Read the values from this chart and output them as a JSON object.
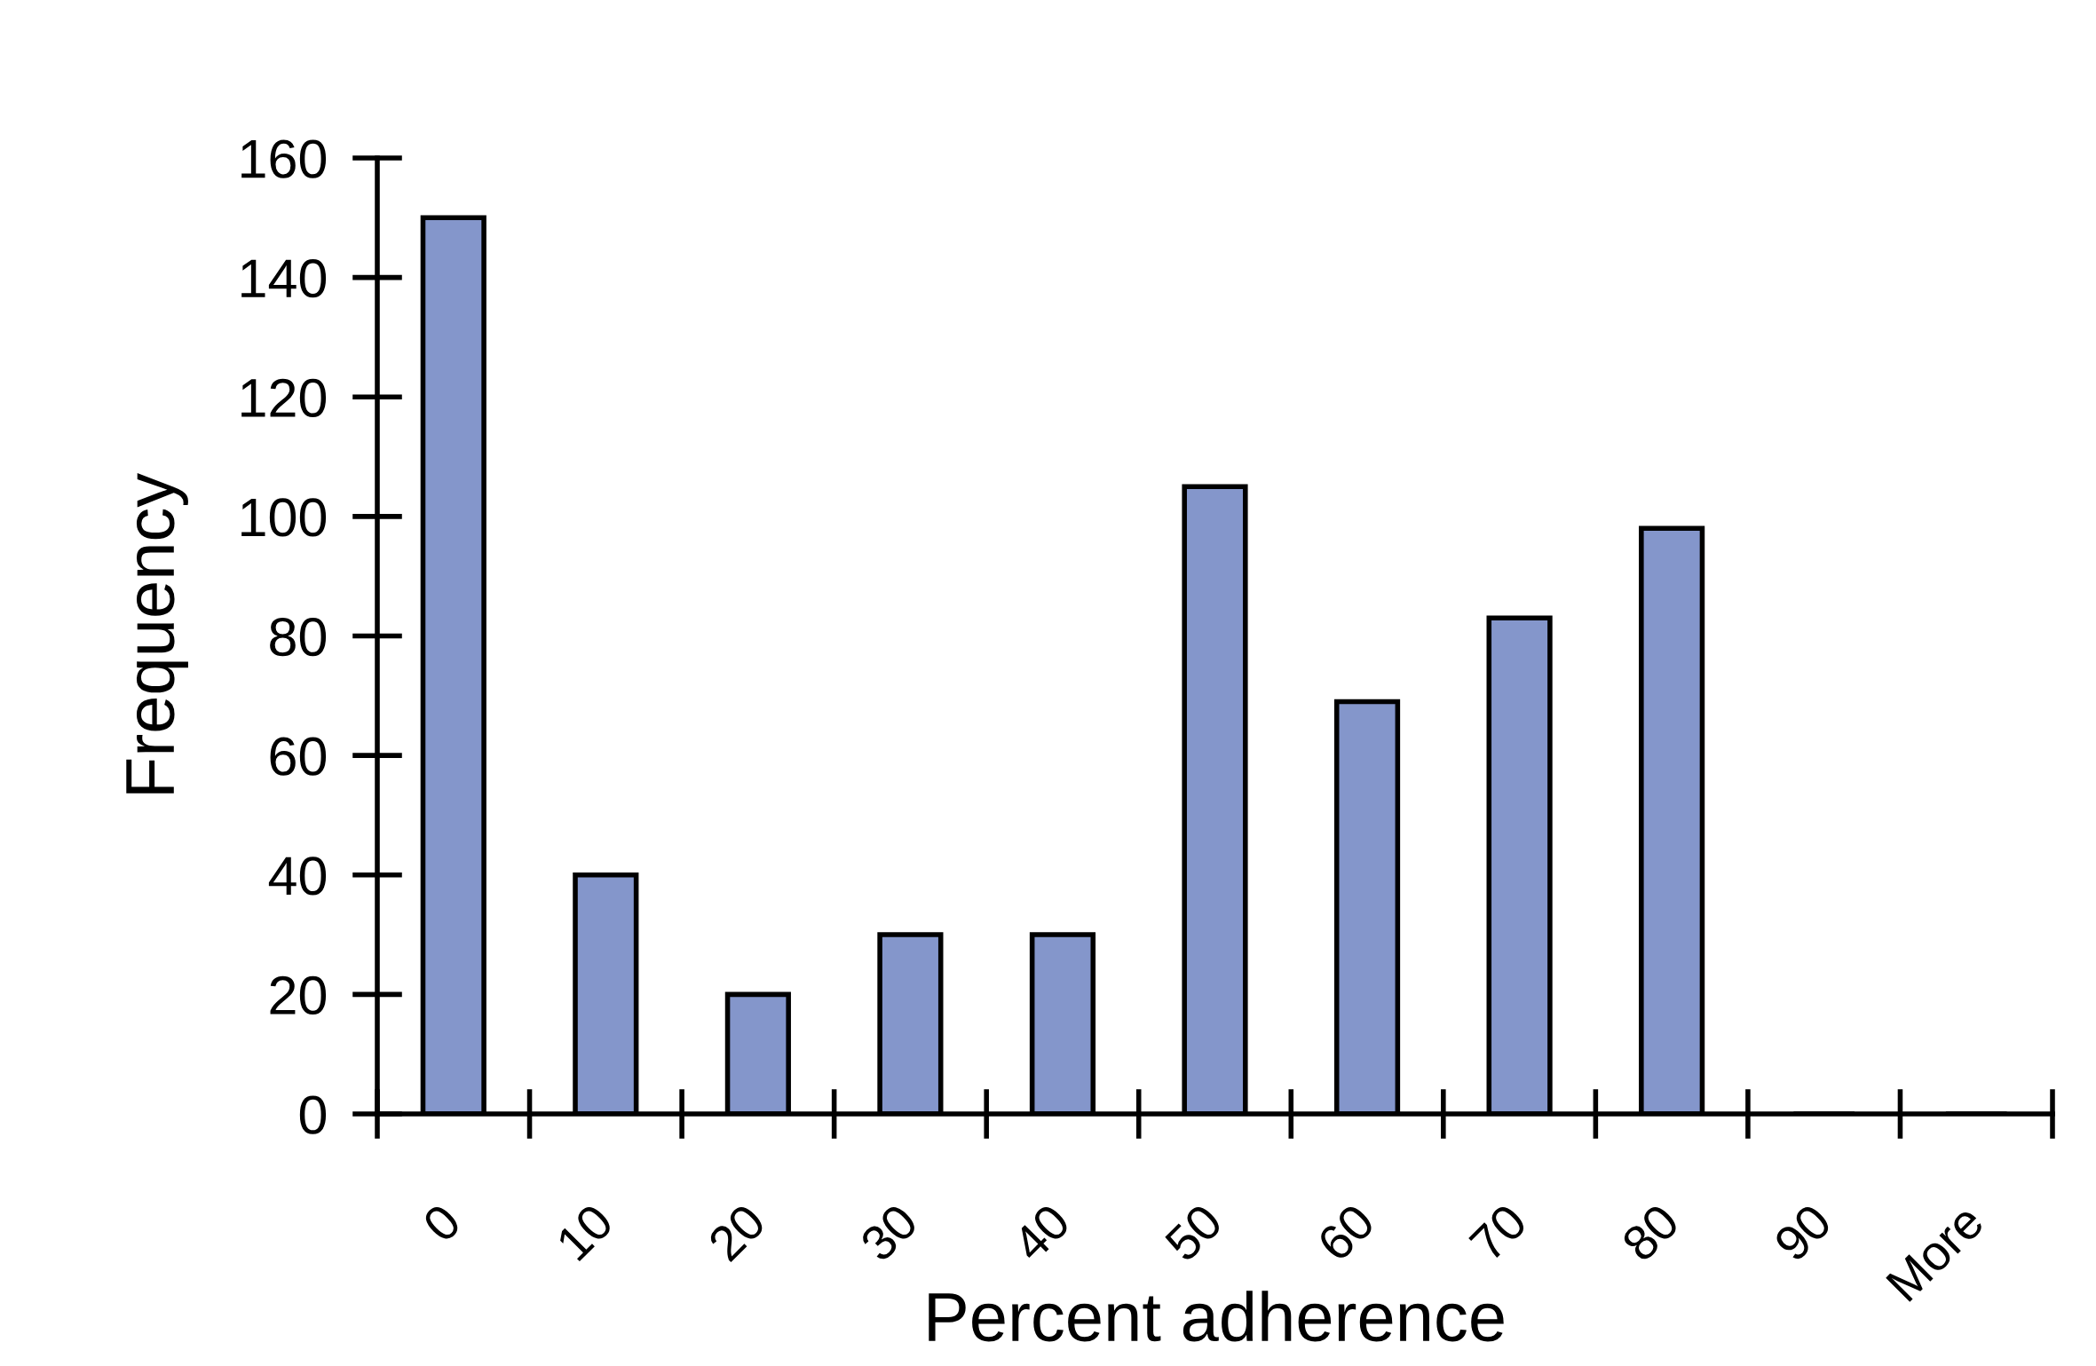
{
  "chart_data": {
    "type": "bar",
    "xlabel": "Percent adherence",
    "ylabel": "Frequency",
    "categories": [
      "0",
      "10",
      "20",
      "30",
      "40",
      "50",
      "60",
      "70",
      "80",
      "90",
      "More"
    ],
    "values": [
      150,
      40,
      20,
      30,
      30,
      105,
      69,
      83,
      98,
      0,
      0
    ],
    "color": "#8496cb",
    "ylim": [
      0,
      160
    ],
    "yticks": [
      0,
      20,
      40,
      60,
      80,
      100,
      120,
      140,
      160
    ],
    "grid": false
  }
}
